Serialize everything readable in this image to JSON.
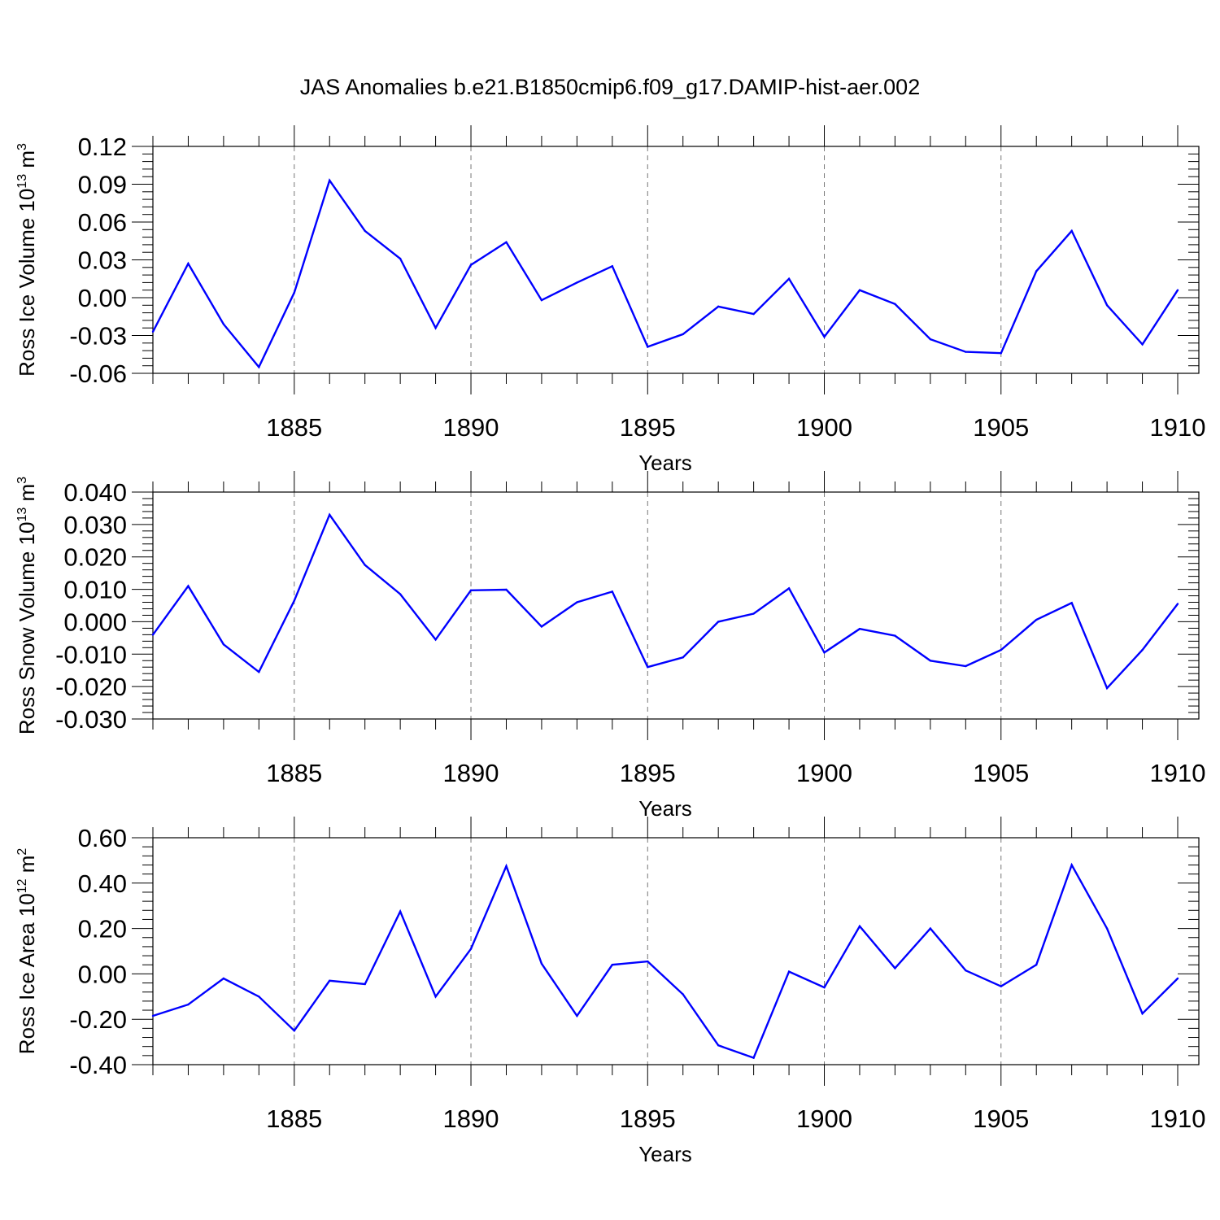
{
  "title": "JAS Anomalies b.e21.B1850cmip6.f09_g17.DAMIP-hist-aer.002",
  "chart_data": [
    {
      "type": "line",
      "ylabel": "Ross Ice Volume 10",
      "ylabel_exp": "13",
      "ylabel_unit": " m",
      "ylabel_unit_exp": "3",
      "xlabel": "Years",
      "xlim": [
        1881,
        1910
      ],
      "ylim": [
        -0.06,
        0.12
      ],
      "yticks": [
        -0.06,
        -0.03,
        0.0,
        0.03,
        0.06,
        0.09,
        0.12
      ],
      "ytick_labels": [
        "-0.06",
        "-0.03",
        "0.00",
        "0.03",
        "0.06",
        "0.09",
        "0.12"
      ],
      "xticks": [
        1885,
        1890,
        1895,
        1900,
        1905,
        1910
      ],
      "xtick_labels": [
        "1885",
        "1890",
        "1895",
        "1900",
        "1905",
        "1910"
      ],
      "grid": "vertical dashed at labeled years",
      "line_color": "#0000ff",
      "x": [
        1881,
        1882,
        1883,
        1884,
        1885,
        1886,
        1887,
        1888,
        1889,
        1890,
        1891,
        1892,
        1893,
        1894,
        1895,
        1896,
        1897,
        1898,
        1899,
        1900,
        1901,
        1902,
        1903,
        1904,
        1905,
        1906,
        1907,
        1908,
        1909,
        1910
      ],
      "y": [
        -0.027,
        0.027,
        -0.021,
        -0.055,
        0.004,
        0.093,
        0.053,
        0.031,
        -0.024,
        0.026,
        0.044,
        -0.002,
        0.012,
        0.025,
        -0.039,
        -0.029,
        -0.007,
        -0.013,
        0.015,
        -0.031,
        0.006,
        -0.005,
        -0.033,
        -0.043,
        -0.044,
        0.021,
        0.053,
        -0.006,
        -0.037,
        0.006
      ]
    },
    {
      "type": "line",
      "ylabel": "Ross Snow Volume 10",
      "ylabel_exp": "13",
      "ylabel_unit": " m",
      "ylabel_unit_exp": "3",
      "xlabel": "Years",
      "xlim": [
        1881,
        1910
      ],
      "ylim": [
        -0.03,
        0.04
      ],
      "yticks": [
        -0.03,
        -0.02,
        -0.01,
        0.0,
        0.01,
        0.02,
        0.03,
        0.04
      ],
      "ytick_labels": [
        "-0.030",
        "-0.020",
        "-0.010",
        "0.000",
        "0.010",
        "0.020",
        "0.030",
        "0.040"
      ],
      "xticks": [
        1885,
        1890,
        1895,
        1900,
        1905,
        1910
      ],
      "xtick_labels": [
        "1885",
        "1890",
        "1895",
        "1900",
        "1905",
        "1910"
      ],
      "grid": "vertical dashed at labeled years",
      "line_color": "#0000ff",
      "x": [
        1881,
        1882,
        1883,
        1884,
        1885,
        1886,
        1887,
        1888,
        1889,
        1890,
        1891,
        1892,
        1893,
        1894,
        1895,
        1896,
        1897,
        1898,
        1899,
        1900,
        1901,
        1902,
        1903,
        1904,
        1905,
        1906,
        1907,
        1908,
        1909,
        1910
      ],
      "y": [
        -0.004,
        0.011,
        -0.007,
        -0.0155,
        0.0065,
        0.033,
        0.0175,
        0.0085,
        -0.0055,
        0.0097,
        0.0099,
        -0.0015,
        0.006,
        0.0093,
        -0.014,
        -0.011,
        0.0,
        0.0025,
        0.0103,
        -0.0095,
        -0.0022,
        -0.0043,
        -0.012,
        -0.0137,
        -0.0087,
        0.0006,
        0.0058,
        -0.0205,
        -0.0087,
        0.0055
      ]
    },
    {
      "type": "line",
      "ylabel": "Ross Ice Area 10",
      "ylabel_exp": "12",
      "ylabel_unit": " m",
      "ylabel_unit_exp": "2",
      "xlabel": "Years",
      "xlim": [
        1881,
        1910
      ],
      "ylim": [
        -0.4,
        0.6
      ],
      "yticks": [
        -0.4,
        -0.2,
        0.0,
        0.2,
        0.4,
        0.6
      ],
      "ytick_labels": [
        "-0.40",
        "-0.20",
        "0.00",
        "0.20",
        "0.40",
        "0.60"
      ],
      "xticks": [
        1885,
        1890,
        1895,
        1900,
        1905,
        1910
      ],
      "xtick_labels": [
        "1885",
        "1890",
        "1895",
        "1900",
        "1905",
        "1910"
      ],
      "grid": "vertical dashed at labeled years",
      "line_color": "#0000ff",
      "x": [
        1881,
        1882,
        1883,
        1884,
        1885,
        1886,
        1887,
        1888,
        1889,
        1890,
        1891,
        1892,
        1893,
        1894,
        1895,
        1896,
        1897,
        1898,
        1899,
        1900,
        1901,
        1902,
        1903,
        1904,
        1905,
        1906,
        1907,
        1908,
        1909,
        1910
      ],
      "y": [
        -0.185,
        -0.135,
        -0.02,
        -0.1,
        -0.25,
        -0.03,
        -0.045,
        0.275,
        -0.1,
        0.11,
        0.475,
        0.045,
        -0.185,
        0.04,
        0.055,
        -0.09,
        -0.315,
        -0.37,
        0.01,
        -0.06,
        0.21,
        0.025,
        0.2,
        0.015,
        -0.055,
        0.04,
        0.48,
        0.2,
        -0.175,
        -0.02
      ]
    }
  ]
}
